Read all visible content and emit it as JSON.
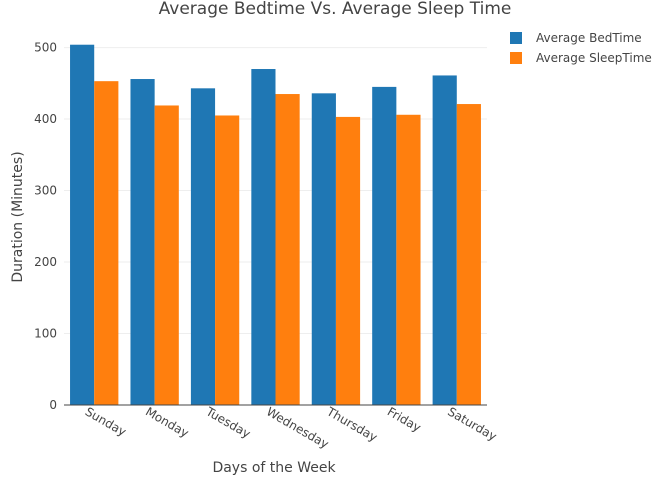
{
  "chart_data": {
    "type": "bar",
    "title": "Average Bedtime Vs. Average Sleep Time",
    "xlabel": "Days of the Week",
    "ylabel": "Duration (Minutes)",
    "ylim": [
      0,
      505
    ],
    "yticks": [
      0,
      100,
      200,
      300,
      400,
      500
    ],
    "grid": true,
    "legend_position": "top-right",
    "categories": [
      "Sunday",
      "Monday",
      "Tuesday",
      "Wednesday",
      "Thursday",
      "Friday",
      "Saturday"
    ],
    "series": [
      {
        "name": "Average BedTime",
        "color": "#1f77b4",
        "values": [
          504,
          456,
          443,
          470,
          436,
          445,
          461
        ]
      },
      {
        "name": "Average SleepTime",
        "color": "#ff7f0e",
        "values": [
          453,
          419,
          405,
          435,
          403,
          406,
          421
        ]
      }
    ]
  }
}
